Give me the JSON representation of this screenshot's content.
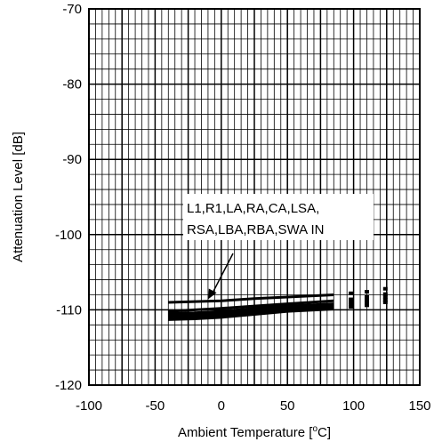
{
  "chart_data": {
    "type": "line",
    "xlabel_main": "Ambient Temperature [",
    "xlabel_sup": "o",
    "xlabel_end": "C]",
    "ylabel": "Attenuation Level [dB]",
    "xlim": [
      -100,
      150
    ],
    "ylim": [
      -120,
      -70
    ],
    "x_ticks": [
      -100,
      -50,
      0,
      50,
      100,
      150
    ],
    "x_tick_labels": [
      "-100",
      "-50",
      "0",
      "50",
      "100",
      "150"
    ],
    "y_ticks": [
      -120,
      -110,
      -100,
      -90,
      -80,
      -70
    ],
    "y_tick_labels": [
      "-120",
      "-110",
      "-100",
      "-90",
      "-80",
      "-70"
    ],
    "grid": true,
    "annotation": {
      "lines": [
        "L1,R1,LA,RA,CA,LSA,",
        "RSA,LBA,RBA,SWA  IN"
      ],
      "arrow_to": [
        -10,
        -108.6
      ]
    },
    "series": [
      {
        "x": [
          -40,
          -20,
          0,
          25,
          50,
          85
        ],
        "y": [
          -109.0,
          -108.9,
          -108.8,
          -108.5,
          -108.3,
          -108.0
        ]
      },
      {
        "x": [
          -40,
          -20,
          0,
          25,
          50,
          85
        ],
        "y": [
          -110.2,
          -110.0,
          -109.8,
          -109.5,
          -109.2,
          -108.8
        ]
      },
      {
        "x": [
          -40,
          -20,
          0,
          25,
          50,
          85
        ],
        "y": [
          -110.5,
          -110.4,
          -110.2,
          -109.8,
          -109.5,
          -109.2
        ]
      },
      {
        "x": [
          -40,
          -20,
          0,
          25,
          50,
          85
        ],
        "y": [
          -110.8,
          -110.7,
          -110.5,
          -110.1,
          -109.8,
          -109.5
        ]
      },
      {
        "x": [
          -40,
          -20,
          0,
          25,
          50,
          85
        ],
        "y": [
          -111.1,
          -111.0,
          -110.8,
          -110.4,
          -110.0,
          -109.7
        ]
      },
      {
        "x": [
          -40,
          -20,
          0,
          25,
          50,
          85
        ],
        "y": [
          -111.3,
          -111.2,
          -111.0,
          -110.6,
          -110.2,
          -109.9
        ]
      }
    ],
    "dashed_points": [
      {
        "x": 98,
        "y": [
          -107.8,
          -108.6,
          -109.0,
          -109.3,
          -109.6
        ]
      },
      {
        "x": 110,
        "y": [
          -107.6,
          -108.3,
          -108.7,
          -109.1,
          -109.4
        ]
      },
      {
        "x": 124,
        "y": [
          -107.2,
          -107.9,
          -108.3,
          -108.7,
          -109.0
        ]
      }
    ]
  }
}
